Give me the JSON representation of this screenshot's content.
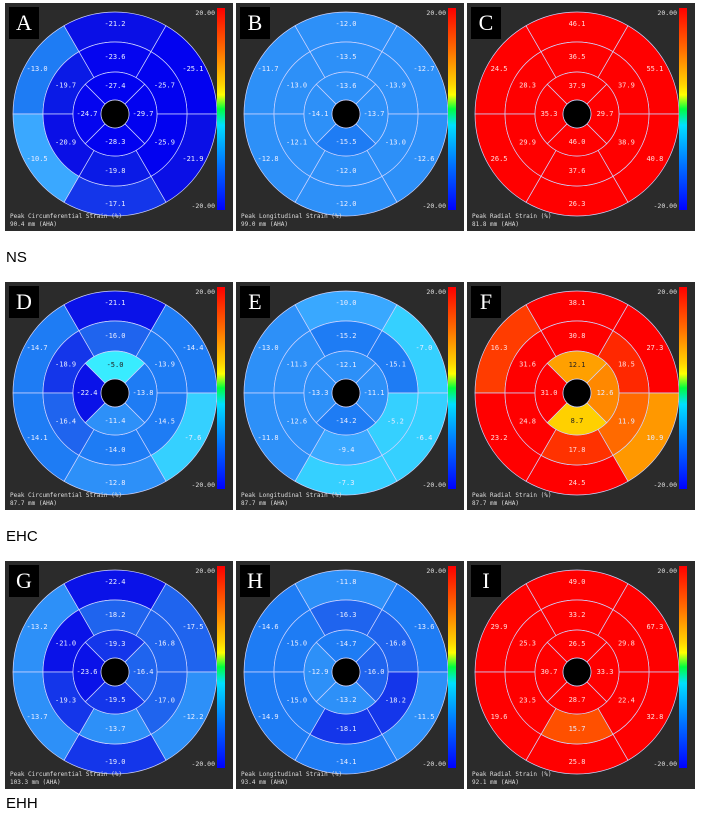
{
  "scale": {
    "max": "20.00",
    "min": "-20.00"
  },
  "groups": [
    {
      "label": "NS",
      "panels": [
        {
          "letter": "A",
          "caption": "Peak Circumferential Strain (%)",
          "subcaption": "90.4 mm (AHA)",
          "values": [
            -13.0,
            -21.2,
            -25.1,
            -21.9,
            -17.1,
            -10.5,
            -19.7,
            -23.6,
            -25.7,
            -25.9,
            -19.8,
            -20.9,
            -24.7,
            -27.4,
            -29.7,
            -28.3
          ],
          "colors": [
            "#1e7cf4",
            "#0a0fe6",
            "#0202f0",
            "#0a0fe6",
            "#1436ea",
            "#3aa8ff",
            "#0a1ae6",
            "#0505ef",
            "#0202f0",
            "#0202f0",
            "#0a1ae6",
            "#0a0fe6",
            "#0505ef",
            "#0202f0",
            "#0202f0",
            "#0202f0"
          ]
        },
        {
          "letter": "B",
          "caption": "Peak Longitudinal Strain (%)",
          "subcaption": "99.0 mm (AHA)",
          "values": [
            -11.7,
            -12.0,
            -12.7,
            -12.6,
            -12.0,
            -12.8,
            -13.0,
            -13.5,
            -13.9,
            -13.0,
            -12.0,
            -12.1,
            -14.1,
            -13.6,
            -13.7,
            -15.5
          ],
          "colors": [
            "#2d90f8",
            "#2d90f8",
            "#2d90f8",
            "#2d90f8",
            "#2d90f8",
            "#2d90f8",
            "#2d90f8",
            "#2d90f8",
            "#2d90f8",
            "#2d90f8",
            "#2d90f8",
            "#2d90f8",
            "#2d90f8",
            "#2d90f8",
            "#2d90f8",
            "#1e7cf4"
          ]
        },
        {
          "letter": "C",
          "caption": "Peak Radial Strain (%)",
          "subcaption": "81.8 mm (AHA)",
          "values": [
            24.5,
            46.1,
            55.1,
            40.8,
            26.3,
            26.5,
            28.3,
            36.5,
            37.9,
            38.9,
            37.6,
            29.9,
            35.3,
            37.9,
            29.7,
            46.0
          ],
          "colors": [
            "#ff0000",
            "#ff0000",
            "#ff0000",
            "#ff0000",
            "#ff0000",
            "#ff0000",
            "#ff0000",
            "#ff0000",
            "#ff0000",
            "#ff0000",
            "#ff0000",
            "#ff0000",
            "#ff0000",
            "#ff0000",
            "#ff0000",
            "#ff0000"
          ]
        }
      ]
    },
    {
      "label": "EHC",
      "panels": [
        {
          "letter": "D",
          "caption": "Peak Circumferential Strain (%)",
          "subcaption": "87.7 mm (AHA)",
          "values": [
            -14.7,
            -21.1,
            -14.4,
            -7.6,
            -12.8,
            -14.1,
            -18.9,
            -16.0,
            -13.9,
            -14.5,
            -14.0,
            -16.4,
            -22.4,
            -5.0,
            -13.8,
            -11.4
          ],
          "colors": [
            "#1e7cf4",
            "#0a12e8",
            "#1e7cf4",
            "#35d0ff",
            "#2d90f8",
            "#1e7cf4",
            "#1436ea",
            "#1f64ee",
            "#1e7cf4",
            "#1e7cf4",
            "#1e7cf4",
            "#1f64ee",
            "#0a12e8",
            "#38ecff",
            "#1e7cf4",
            "#2d90f8"
          ]
        },
        {
          "letter": "E",
          "caption": "Peak Longitudinal Strain (%)",
          "subcaption": "87.7 mm (AHA)",
          "values": [
            -13.0,
            -10.0,
            -7.0,
            -6.4,
            -7.3,
            -11.8,
            -11.3,
            -15.2,
            -15.1,
            -5.2,
            -9.4,
            -12.6,
            -13.3,
            -12.1,
            -11.1,
            -14.2
          ],
          "colors": [
            "#2d90f8",
            "#39a8ff",
            "#35d0ff",
            "#35d0ff",
            "#35d0ff",
            "#2d90f8",
            "#2d90f8",
            "#1e7cf4",
            "#1e7cf4",
            "#35d0ff",
            "#39a8ff",
            "#2d90f8",
            "#2d90f8",
            "#2d90f8",
            "#2d90f8",
            "#1e7cf4"
          ]
        },
        {
          "letter": "F",
          "caption": "Peak Radial Strain (%)",
          "subcaption": "87.7 mm (AHA)",
          "values": [
            16.3,
            38.1,
            27.3,
            10.9,
            24.5,
            23.2,
            31.6,
            30.8,
            18.5,
            11.9,
            17.8,
            24.8,
            31.0,
            12.1,
            12.6,
            8.7
          ],
          "colors": [
            "#ff3c00",
            "#ff0000",
            "#ff0000",
            "#ff9800",
            "#ff0000",
            "#ff0000",
            "#ff0000",
            "#ff0000",
            "#ff2800",
            "#ff6a00",
            "#ff3200",
            "#ff0000",
            "#ff0000",
            "#ffa000",
            "#ff8800",
            "#ffd000"
          ]
        }
      ]
    },
    {
      "label": "EHH",
      "panels": [
        {
          "letter": "G",
          "caption": "Peak Circumferential Strain (%)",
          "subcaption": "103.3 mm (AHA)",
          "values": [
            -13.2,
            -22.4,
            -17.5,
            -12.2,
            -19.0,
            -13.7,
            -21.0,
            -18.2,
            -16.8,
            -17.0,
            -13.7,
            -19.3,
            -23.6,
            -19.3,
            -16.4,
            -19.5
          ],
          "colors": [
            "#2d90f8",
            "#0a12e8",
            "#1f64ee",
            "#2d90f8",
            "#1436ea",
            "#2d90f8",
            "#0a12e8",
            "#1f64ee",
            "#1f64ee",
            "#1f64ee",
            "#2d90f8",
            "#1436ea",
            "#0a12e8",
            "#1436ea",
            "#1f64ee",
            "#1436ea"
          ]
        },
        {
          "letter": "H",
          "caption": "Peak Longitudinal Strain (%)",
          "subcaption": "93.4 mm (AHA)",
          "values": [
            -14.6,
            -11.8,
            -13.6,
            -11.5,
            -14.1,
            -14.9,
            -15.0,
            -16.3,
            -16.8,
            -18.2,
            -18.1,
            -15.0,
            -12.9,
            -14.7,
            -16.0,
            -13.2
          ],
          "colors": [
            "#1e7cf4",
            "#2d90f8",
            "#1e7cf4",
            "#2d90f8",
            "#1e7cf4",
            "#1e7cf4",
            "#1e7cf4",
            "#1f64ee",
            "#1f64ee",
            "#1436ea",
            "#1436ea",
            "#1e7cf4",
            "#2d90f8",
            "#1e7cf4",
            "#1f64ee",
            "#2d90f8"
          ]
        },
        {
          "letter": "I",
          "caption": "Peak Radial Strain (%)",
          "subcaption": "92.1 mm (AHA)",
          "values": [
            29.9,
            49.0,
            67.3,
            32.8,
            25.8,
            19.6,
            25.3,
            33.2,
            29.8,
            22.4,
            15.7,
            23.5,
            30.7,
            26.5,
            33.3,
            28.7
          ],
          "colors": [
            "#ff0000",
            "#ff0000",
            "#ff0000",
            "#ff0000",
            "#ff0000",
            "#ff0000",
            "#ff0000",
            "#ff0000",
            "#ff0000",
            "#ff0000",
            "#ff5000",
            "#ff0000",
            "#ff0000",
            "#ff0000",
            "#ff0000",
            "#ff0000"
          ]
        }
      ]
    }
  ]
}
